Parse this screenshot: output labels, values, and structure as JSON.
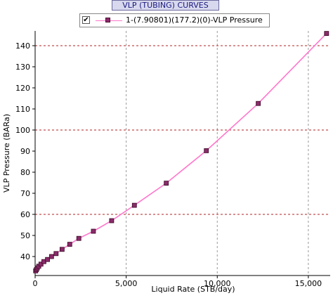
{
  "header": {
    "title": "VLP (TUBING) CURVES"
  },
  "legend": {
    "checkbox_mark": "✔",
    "entries": [
      "1-(7.90801)(177.2)(0)-VLP Pressure"
    ]
  },
  "colors": {
    "line": "#ff77cc",
    "marker_fill": "#8b2b6b",
    "grid": "#999999",
    "ref_line": "#b22222"
  },
  "chart_data": {
    "type": "line",
    "xlabel": "Liquid Rate  (STB/day)",
    "ylabel": "VLP Pressure  (BARa)",
    "xlim": [
      0,
      16200
    ],
    "ylim": [
      31,
      147
    ],
    "x_ticks": [
      0,
      5000,
      10000,
      15000
    ],
    "x_tick_labels": [
      "0",
      "5,000",
      "10,000",
      "15,000"
    ],
    "y_ticks": [
      40,
      50,
      60,
      70,
      80,
      90,
      100,
      110,
      120,
      130,
      140
    ],
    "y_tick_labels": [
      "40",
      "50",
      "60",
      "70",
      "80",
      "90",
      "100",
      "110",
      "120",
      "130",
      "140"
    ],
    "dashed_reference_lines_y": [
      60,
      100,
      140
    ],
    "vertical_grid_x": [
      5000,
      10000,
      15000
    ],
    "series": [
      {
        "name": "1-(7.90801)(177.2)(0)-VLP Pressure",
        "x": [
          30,
          70,
          120,
          200,
          320,
          480,
          680,
          900,
          1150,
          1480,
          1900,
          2400,
          3200,
          4200,
          5450,
          7200,
          9400,
          12250,
          16000
        ],
        "y": [
          33.2,
          33.8,
          34.6,
          35.4,
          36.4,
          37.6,
          38.6,
          40.0,
          41.4,
          43.4,
          45.8,
          48.6,
          52.0,
          57.0,
          64.3,
          74.8,
          90.2,
          112.6,
          145.8
        ]
      }
    ]
  }
}
